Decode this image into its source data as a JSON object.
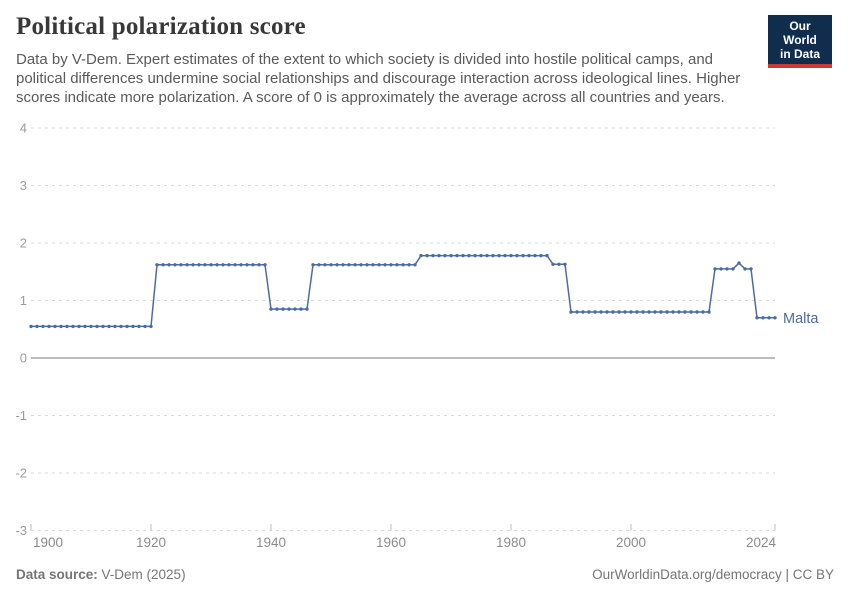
{
  "header": {
    "title": "Political polarization score",
    "subtitle": "Data by V-Dem. Expert estimates of the extent to which society is divided into hostile political camps, and political differences undermine social relationships and discourage interaction across ideological lines. Higher scores indicate more polarization. A score of 0 is approximately the average across all countries and years.",
    "logo": {
      "line1": "Our World",
      "line2": "in Data"
    }
  },
  "footer": {
    "source_label": "Data source:",
    "source_value": " V-Dem (2025)",
    "link_text": "OurWorldinData.org/democracy",
    "separator": " | ",
    "license_text": "CC BY"
  },
  "colors": {
    "line": "#4d6ba3",
    "logo_navy": "#102d4e",
    "logo_red": "#cc3a31",
    "grid": "#dadada",
    "zero_line": "#a6a6a6",
    "y_label": "#9c9c9c",
    "x_label": "#8c8c8c",
    "tick": "#bdbdbd"
  },
  "chart_data": {
    "type": "line",
    "title": "Political polarization score",
    "xlabel": "",
    "ylabel": "",
    "xlim": [
      1900,
      2024
    ],
    "ylim": [
      -3,
      4
    ],
    "x_ticks": [
      1900,
      1920,
      1940,
      1960,
      1980,
      2000,
      2024
    ],
    "y_ticks": [
      4,
      3,
      2,
      1,
      0,
      -1,
      -2,
      -3
    ],
    "grid": "horizontal-dashed",
    "legend": "end-of-line-label",
    "series": [
      {
        "name": "Malta",
        "color": "#4d6ba3",
        "points": [
          [
            1900,
            0.55
          ],
          [
            1901,
            0.55
          ],
          [
            1902,
            0.55
          ],
          [
            1903,
            0.55
          ],
          [
            1904,
            0.55
          ],
          [
            1905,
            0.55
          ],
          [
            1906,
            0.55
          ],
          [
            1907,
            0.55
          ],
          [
            1908,
            0.55
          ],
          [
            1909,
            0.55
          ],
          [
            1910,
            0.55
          ],
          [
            1911,
            0.55
          ],
          [
            1912,
            0.55
          ],
          [
            1913,
            0.55
          ],
          [
            1914,
            0.55
          ],
          [
            1915,
            0.55
          ],
          [
            1916,
            0.55
          ],
          [
            1917,
            0.55
          ],
          [
            1918,
            0.55
          ],
          [
            1919,
            0.55
          ],
          [
            1920,
            0.55
          ],
          [
            1921,
            1.62
          ],
          [
            1922,
            1.62
          ],
          [
            1923,
            1.62
          ],
          [
            1924,
            1.62
          ],
          [
            1925,
            1.62
          ],
          [
            1926,
            1.62
          ],
          [
            1927,
            1.62
          ],
          [
            1928,
            1.62
          ],
          [
            1929,
            1.62
          ],
          [
            1930,
            1.62
          ],
          [
            1931,
            1.62
          ],
          [
            1932,
            1.62
          ],
          [
            1933,
            1.62
          ],
          [
            1934,
            1.62
          ],
          [
            1935,
            1.62
          ],
          [
            1936,
            1.62
          ],
          [
            1937,
            1.62
          ],
          [
            1938,
            1.62
          ],
          [
            1939,
            1.62
          ],
          [
            1940,
            0.85
          ],
          [
            1941,
            0.85
          ],
          [
            1942,
            0.85
          ],
          [
            1943,
            0.85
          ],
          [
            1944,
            0.85
          ],
          [
            1945,
            0.85
          ],
          [
            1946,
            0.85
          ],
          [
            1947,
            1.62
          ],
          [
            1948,
            1.62
          ],
          [
            1949,
            1.62
          ],
          [
            1950,
            1.62
          ],
          [
            1951,
            1.62
          ],
          [
            1952,
            1.62
          ],
          [
            1953,
            1.62
          ],
          [
            1954,
            1.62
          ],
          [
            1955,
            1.62
          ],
          [
            1956,
            1.62
          ],
          [
            1957,
            1.62
          ],
          [
            1958,
            1.62
          ],
          [
            1959,
            1.62
          ],
          [
            1960,
            1.62
          ],
          [
            1961,
            1.62
          ],
          [
            1962,
            1.62
          ],
          [
            1963,
            1.62
          ],
          [
            1964,
            1.62
          ],
          [
            1965,
            1.78
          ],
          [
            1966,
            1.78
          ],
          [
            1967,
            1.78
          ],
          [
            1968,
            1.78
          ],
          [
            1969,
            1.78
          ],
          [
            1970,
            1.78
          ],
          [
            1971,
            1.78
          ],
          [
            1972,
            1.78
          ],
          [
            1973,
            1.78
          ],
          [
            1974,
            1.78
          ],
          [
            1975,
            1.78
          ],
          [
            1976,
            1.78
          ],
          [
            1977,
            1.78
          ],
          [
            1978,
            1.78
          ],
          [
            1979,
            1.78
          ],
          [
            1980,
            1.78
          ],
          [
            1981,
            1.78
          ],
          [
            1982,
            1.78
          ],
          [
            1983,
            1.78
          ],
          [
            1984,
            1.78
          ],
          [
            1985,
            1.78
          ],
          [
            1986,
            1.78
          ],
          [
            1987,
            1.63
          ],
          [
            1988,
            1.63
          ],
          [
            1989,
            1.63
          ],
          [
            1990,
            0.8
          ],
          [
            1991,
            0.8
          ],
          [
            1992,
            0.8
          ],
          [
            1993,
            0.8
          ],
          [
            1994,
            0.8
          ],
          [
            1995,
            0.8
          ],
          [
            1996,
            0.8
          ],
          [
            1997,
            0.8
          ],
          [
            1998,
            0.8
          ],
          [
            1999,
            0.8
          ],
          [
            2000,
            0.8
          ],
          [
            2001,
            0.8
          ],
          [
            2002,
            0.8
          ],
          [
            2003,
            0.8
          ],
          [
            2004,
            0.8
          ],
          [
            2005,
            0.8
          ],
          [
            2006,
            0.8
          ],
          [
            2007,
            0.8
          ],
          [
            2008,
            0.8
          ],
          [
            2009,
            0.8
          ],
          [
            2010,
            0.8
          ],
          [
            2011,
            0.8
          ],
          [
            2012,
            0.8
          ],
          [
            2013,
            0.8
          ],
          [
            2014,
            1.55
          ],
          [
            2015,
            1.55
          ],
          [
            2016,
            1.55
          ],
          [
            2017,
            1.55
          ],
          [
            2018,
            1.65
          ],
          [
            2019,
            1.55
          ],
          [
            2020,
            1.55
          ],
          [
            2021,
            0.7
          ],
          [
            2022,
            0.7
          ],
          [
            2023,
            0.7
          ],
          [
            2024,
            0.7
          ]
        ]
      }
    ]
  }
}
